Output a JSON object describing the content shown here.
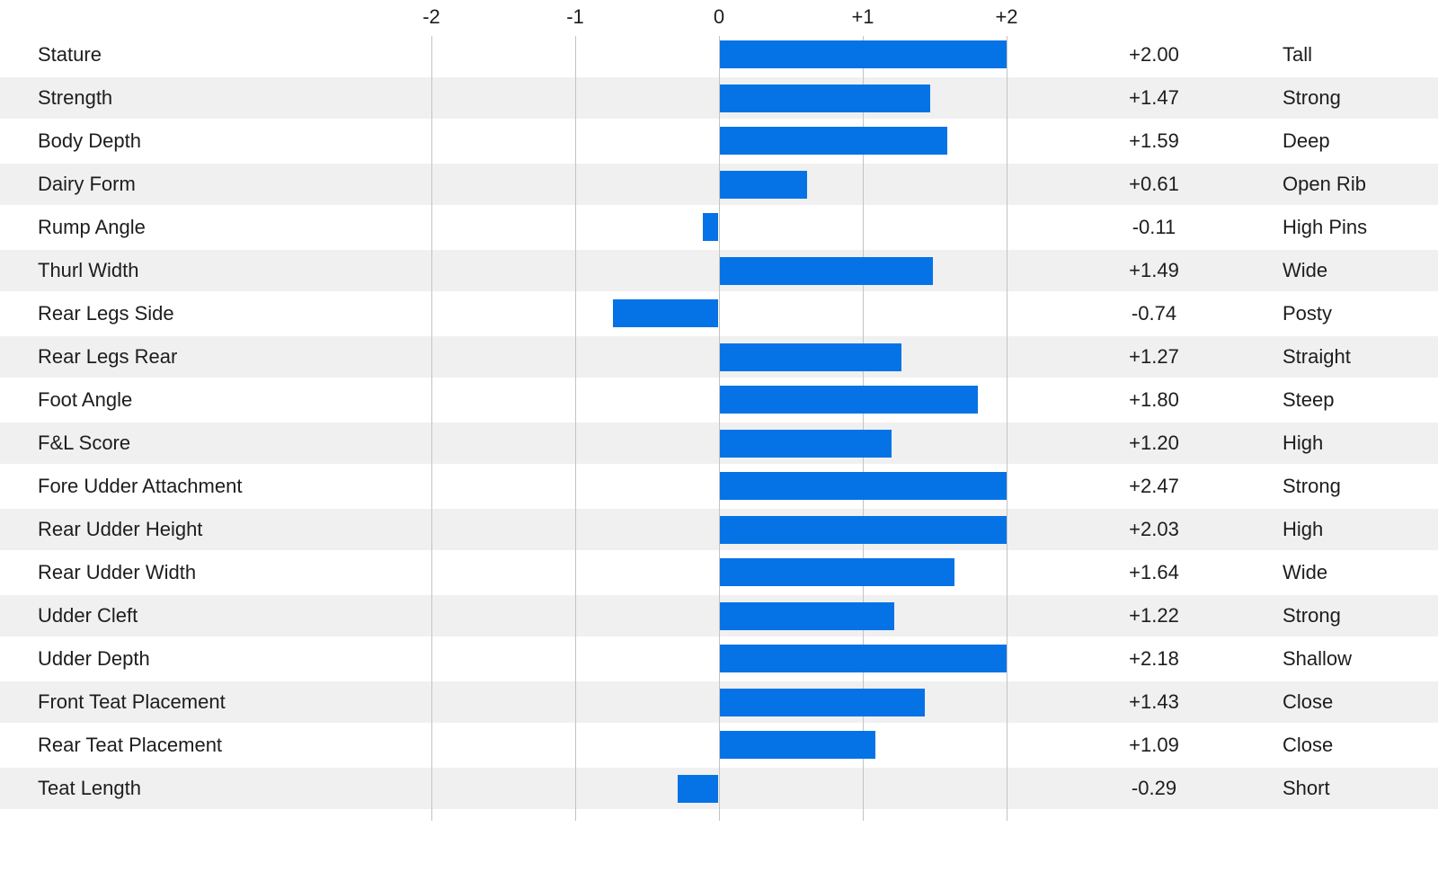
{
  "chart_data": {
    "type": "bar",
    "orientation": "horizontal",
    "title": "",
    "xlabel": "",
    "ylabel": "",
    "xlim": [
      -2,
      2
    ],
    "bar_clamp": 2,
    "grid": true,
    "axis_ticks": [
      {
        "label": "-2",
        "value": -2
      },
      {
        "label": "-1",
        "value": -1
      },
      {
        "label": "0",
        "value": 0
      },
      {
        "label": "+1",
        "value": 1
      },
      {
        "label": "+2",
        "value": 2
      }
    ],
    "rows": [
      {
        "trait": "Stature",
        "value": 2.0,
        "value_label": "+2.00",
        "descriptor": "Tall"
      },
      {
        "trait": "Strength",
        "value": 1.47,
        "value_label": "+1.47",
        "descriptor": "Strong"
      },
      {
        "trait": "Body Depth",
        "value": 1.59,
        "value_label": "+1.59",
        "descriptor": "Deep"
      },
      {
        "trait": "Dairy Form",
        "value": 0.61,
        "value_label": "+0.61",
        "descriptor": "Open Rib"
      },
      {
        "trait": "Rump Angle",
        "value": -0.11,
        "value_label": "-0.11",
        "descriptor": "High Pins"
      },
      {
        "trait": "Thurl Width",
        "value": 1.49,
        "value_label": "+1.49",
        "descriptor": "Wide"
      },
      {
        "trait": "Rear Legs Side",
        "value": -0.74,
        "value_label": "-0.74",
        "descriptor": "Posty"
      },
      {
        "trait": "Rear Legs Rear",
        "value": 1.27,
        "value_label": "+1.27",
        "descriptor": "Straight"
      },
      {
        "trait": "Foot Angle",
        "value": 1.8,
        "value_label": "+1.80",
        "descriptor": "Steep"
      },
      {
        "trait": "F&L Score",
        "value": 1.2,
        "value_label": "+1.20",
        "descriptor": "High"
      },
      {
        "trait": "Fore Udder Attachment",
        "value": 2.47,
        "value_label": "+2.47",
        "descriptor": "Strong"
      },
      {
        "trait": "Rear Udder Height",
        "value": 2.03,
        "value_label": "+2.03",
        "descriptor": "High"
      },
      {
        "trait": "Rear Udder Width",
        "value": 1.64,
        "value_label": "+1.64",
        "descriptor": "Wide"
      },
      {
        "trait": "Udder Cleft",
        "value": 1.22,
        "value_label": "+1.22",
        "descriptor": "Strong"
      },
      {
        "trait": "Udder Depth",
        "value": 2.18,
        "value_label": "+2.18",
        "descriptor": "Shallow"
      },
      {
        "trait": "Front Teat Placement",
        "value": 1.43,
        "value_label": "+1.43",
        "descriptor": "Close"
      },
      {
        "trait": "Rear Teat Placement",
        "value": 1.09,
        "value_label": "+1.09",
        "descriptor": "Close"
      },
      {
        "trait": "Teat Length",
        "value": -0.29,
        "value_label": "-0.29",
        "descriptor": "Short"
      }
    ],
    "colors": {
      "bar": "#0573e6",
      "stripe": "#f0f0f0",
      "gridline": "#c3c3c3",
      "text": "#1d1d1f",
      "background": "#ffffff"
    },
    "legend_position": "none"
  }
}
